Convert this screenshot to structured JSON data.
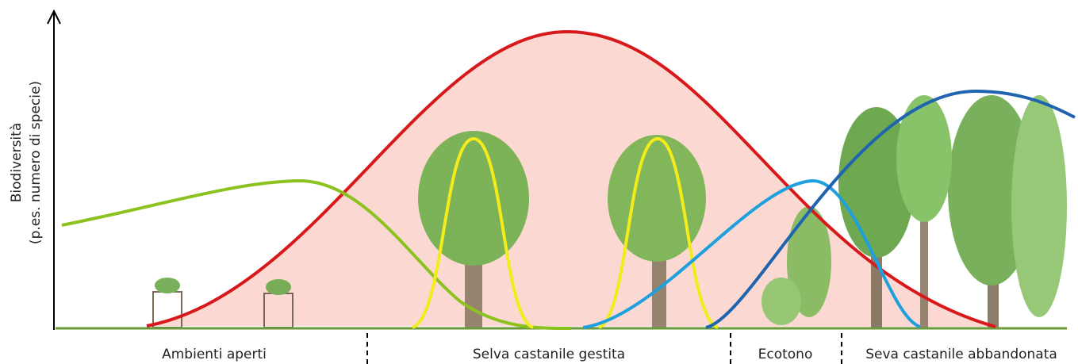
{
  "axis": {
    "label_line1": "Biodiversità",
    "label_line2": "(p.es. numero di specie)"
  },
  "zones": [
    {
      "label": "Ambienti aperti"
    },
    {
      "label": "Selva castanile gestita"
    },
    {
      "label": "Ecotono"
    },
    {
      "label": "Seva castanile abbandonata"
    }
  ]
}
